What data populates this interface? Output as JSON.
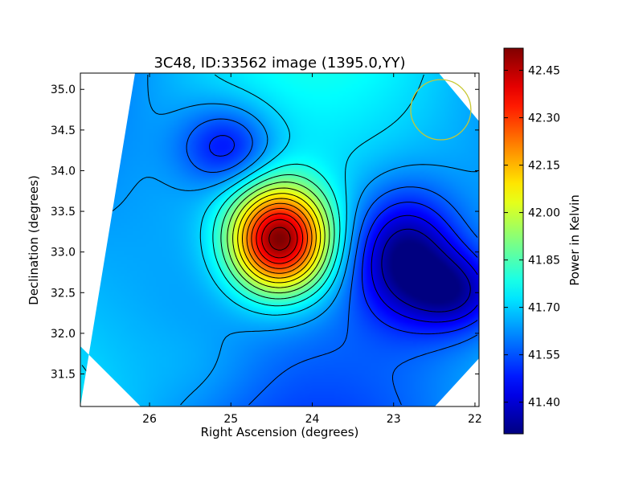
{
  "chart_data": {
    "type": "heatmap",
    "title": "3C48, ID:33562 image (1395.0,YY)",
    "xlabel": "Right Ascension (degrees)",
    "ylabel": "Declination (degrees)",
    "xlim": [
      26.85,
      21.95
    ],
    "ylim": [
      31.1,
      35.2
    ],
    "x_ticks": [
      "26",
      "25",
      "24",
      "23",
      "22"
    ],
    "x_tick_values": [
      26,
      25,
      24,
      23,
      22
    ],
    "y_ticks": [
      "31.5",
      "32.0",
      "32.5",
      "33.0",
      "33.5",
      "34.0",
      "34.5",
      "35.0"
    ],
    "y_tick_values": [
      31.5,
      32.0,
      32.5,
      33.0,
      33.5,
      34.0,
      34.5,
      35.0
    ],
    "colorbar": {
      "label": "Power in Kelvin",
      "range": [
        41.3,
        42.52
      ],
      "ticks": [
        "41.40",
        "41.55",
        "41.70",
        "41.85",
        "42.00",
        "42.15",
        "42.30",
        "42.45"
      ],
      "tick_values": [
        41.4,
        41.55,
        41.7,
        41.85,
        42.0,
        42.15,
        42.3,
        42.45
      ],
      "colormap": "jet"
    },
    "features": [
      {
        "kind": "peak",
        "ra": 24.4,
        "dec": 33.15,
        "value": 42.52
      },
      {
        "kind": "trough",
        "ra": 22.85,
        "dec": 32.95,
        "value": 41.3
      },
      {
        "kind": "trough",
        "ra": 25.05,
        "dec": 34.3,
        "value": 41.43
      },
      {
        "kind": "trough",
        "ra": 22.2,
        "dec": 32.5,
        "value": 41.4
      }
    ],
    "background_value": 41.65,
    "beam_circle": {
      "ra": 22.42,
      "dec": 34.75,
      "radius_deg": 0.37,
      "color": "#c8c832"
    },
    "contour_color": "#000000"
  }
}
